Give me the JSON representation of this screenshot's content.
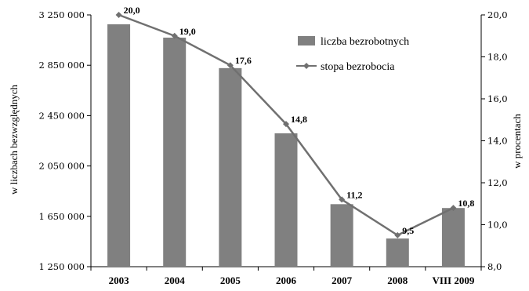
{
  "chart_data": {
    "type": "bar",
    "categories": [
      "2003",
      "2004",
      "2005",
      "2006",
      "2007",
      "2008",
      "VIII 2009"
    ],
    "series": [
      {
        "name": "liczba bezrobotnych",
        "type": "bar",
        "axis": "left",
        "values": [
          3175700,
          3069500,
          2827400,
          2309400,
          1746600,
          1473800,
          1716000
        ]
      },
      {
        "name": "stopa bezrobocia",
        "type": "line",
        "axis": "right",
        "values": [
          20.0,
          19.0,
          17.6,
          14.8,
          11.2,
          9.5,
          10.8
        ],
        "labels": [
          "20,0",
          "19,0",
          "17,6",
          "14,8",
          "11,2",
          "9,5",
          "10,8"
        ]
      }
    ],
    "ylabel": "w liczbach bezwzględnych",
    "y2label": "w procentach",
    "ylim": [
      1250000,
      3250000
    ],
    "y2lim": [
      8.0,
      20.0
    ],
    "yticks": [
      1250000,
      1650000,
      2050000,
      2450000,
      2850000,
      3250000
    ],
    "ytick_labels": [
      "1 250 000",
      "1 650 000",
      "2 050 000",
      "2 450 000",
      "2 850 000",
      "3 250 000"
    ],
    "y2ticks": [
      8,
      10,
      12,
      14,
      16,
      18,
      20
    ],
    "y2tick_labels": [
      "8,0",
      "10,0",
      "12,0",
      "14,0",
      "16,0",
      "18,0",
      "20,0"
    ],
    "legend_position": "top-right",
    "grid": false
  },
  "colors": {
    "bar": "#808080",
    "line": "#707070",
    "axis": "#000000"
  }
}
